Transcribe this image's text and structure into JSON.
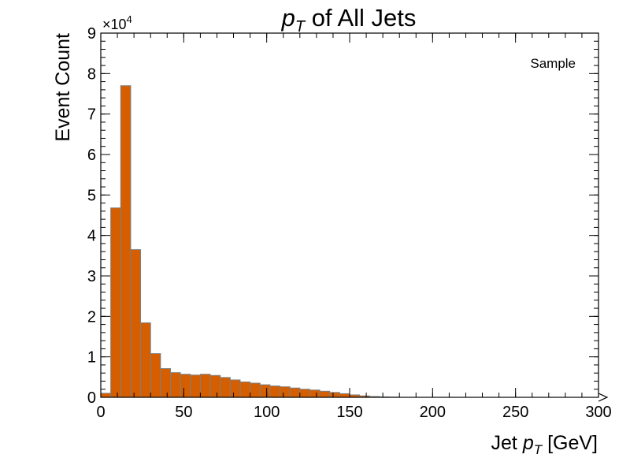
{
  "chart_data": {
    "type": "bar",
    "title": "pT of All Jets",
    "title_parts": {
      "var": "p",
      "sub": "T",
      "rest": " of All Jets"
    },
    "xlabel": "Jet pT [GeV]",
    "xlabel_parts": {
      "pre": "Jet ",
      "var": "p",
      "sub": "T",
      "post": " [GeV]"
    },
    "ylabel": "Event Count",
    "y_multiplier": "×10",
    "y_multiplier_exp": "4",
    "xlim": [
      0,
      300
    ],
    "ylim": [
      0,
      90000
    ],
    "x_ticks": [
      "0",
      "50",
      "100",
      "150",
      "200",
      "250",
      "300"
    ],
    "y_ticks": [
      "0",
      "1",
      "2",
      "3",
      "4",
      "5",
      "6",
      "7",
      "8",
      "9"
    ],
    "bin_edges": [
      0,
      6,
      12,
      18,
      24,
      30,
      36,
      42,
      48,
      54,
      60,
      66,
      72,
      78,
      84,
      90,
      96,
      102,
      108,
      114,
      120,
      126,
      132,
      138,
      144,
      150,
      156,
      162,
      168,
      174,
      180
    ],
    "series": [
      {
        "name": "Sample",
        "values": [
          1000,
          46800,
          77000,
          36500,
          18400,
          10800,
          7100,
          6100,
          5700,
          5500,
          5700,
          5400,
          4900,
          4300,
          3800,
          3500,
          3100,
          2800,
          2600,
          2300,
          2000,
          1800,
          1500,
          1200,
          900,
          600,
          350,
          200,
          100,
          50
        ]
      }
    ],
    "legend": {
      "location": "top-right",
      "entries": [
        "Sample"
      ]
    },
    "colors": {
      "fill": "#d55e00",
      "edge": "#7f7f7f"
    },
    "grid": false
  }
}
